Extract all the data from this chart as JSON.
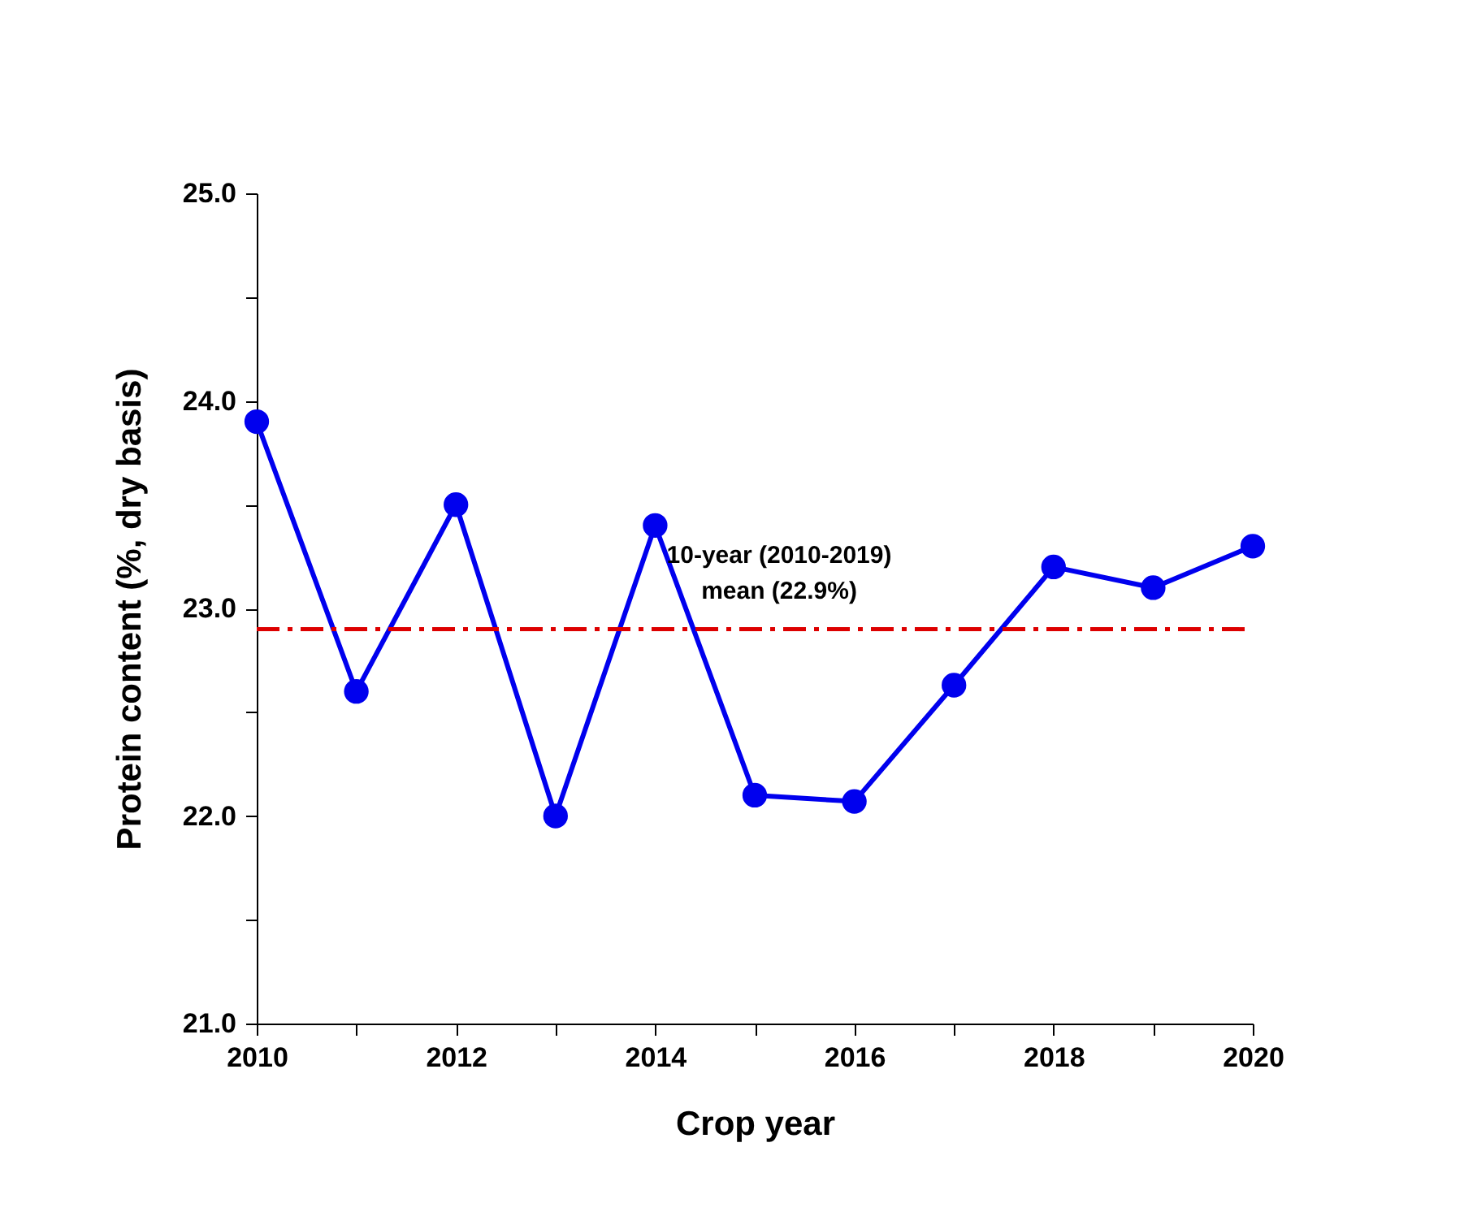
{
  "chart_data": {
    "type": "line",
    "xlabel": "Crop year",
    "ylabel": "Protein content (%, dry basis)",
    "x": [
      2010,
      2011,
      2012,
      2013,
      2014,
      2015,
      2016,
      2017,
      2018,
      2019,
      2020
    ],
    "series": [
      {
        "color": "#0000ee",
        "values": [
          23.9,
          22.6,
          23.5,
          22.0,
          23.4,
          22.1,
          22.07,
          22.63,
          23.2,
          23.1,
          23.3
        ]
      }
    ],
    "marker": "circle",
    "line_style": "solid",
    "xlim": [
      2010,
      2020
    ],
    "xticks": [
      2010,
      {
        "value": 2011,
        "label": null
      },
      2012,
      {
        "value": 2013,
        "label": null
      },
      2014,
      {
        "value": 2015,
        "label": null
      },
      2016,
      {
        "value": 2017,
        "label": null
      },
      2018,
      {
        "value": 2019,
        "label": null
      },
      2020
    ],
    "ylim": [
      21,
      25
    ],
    "yticks": [
      {
        "value": 21,
        "label": "21.0"
      },
      {
        "value": 21.5,
        "label": null
      },
      {
        "value": 22,
        "label": "22.0"
      },
      {
        "value": 22.5,
        "label": null
      },
      {
        "value": 23,
        "label": "23.0"
      },
      {
        "value": 23.5,
        "label": null
      },
      {
        "value": 24,
        "label": "24.0"
      },
      {
        "value": 24.5,
        "label": null
      },
      {
        "value": 25,
        "label": "25.0"
      }
    ],
    "ref_lines": [
      {
        "axis": "y",
        "value": 22.9,
        "label": "10-year (2010-2019)\nmean (22.9%)",
        "color": "#dd0000",
        "line_style": "dashdot"
      }
    ]
  }
}
